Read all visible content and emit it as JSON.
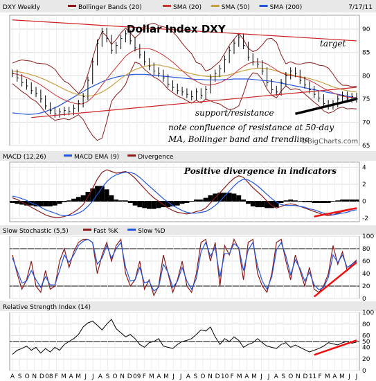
{
  "chart_data": {
    "type": "line",
    "header": {
      "symbol": "DXY Weekly",
      "date": "7/17/11",
      "legend": [
        {
          "name": "Bollinger Bands (20)",
          "color": "#8b1a1a"
        },
        {
          "name": "SMA (20)",
          "color": "#cc3333"
        },
        {
          "name": "SMA (50)",
          "color": "#c8a040"
        },
        {
          "name": "SMA (200)",
          "color": "#2255dd"
        }
      ]
    },
    "title": "Dollar Index  DXY",
    "watermark": "©BigCharts.com",
    "annotations": {
      "target": "target",
      "support": "support/resistance",
      "note1": "note confluence of resistance at 50-day",
      "note2": "MA, Bollinger band and trendline",
      "divergence": "Positive divergence in indicators"
    },
    "x_labels": [
      "A",
      "S",
      "O",
      "N",
      "D",
      "08",
      "F",
      "M",
      "A",
      "M",
      "J",
      "J",
      "A",
      "S",
      "O",
      "N",
      "D",
      "09",
      "F",
      "M",
      "A",
      "M",
      "J",
      "J",
      "A",
      "S",
      "O",
      "N",
      "D",
      "10",
      "F",
      "M",
      "A",
      "M",
      "J",
      "J",
      "A",
      "S",
      "O",
      "N",
      "D",
      "11",
      "F",
      "M",
      "A",
      "M",
      "J",
      "J"
    ],
    "price": {
      "ylim": [
        65,
        93
      ],
      "ticks": [
        65,
        70,
        75,
        80,
        85,
        90
      ],
      "close": [
        80.5,
        79.5,
        78.5,
        77.8,
        76.8,
        76.2,
        75.0,
        73.5,
        72.5,
        71.8,
        72.2,
        72.5,
        72.3,
        73.0,
        74.0,
        75.5,
        79.0,
        83.0,
        87.0,
        89.5,
        88.0,
        85.5,
        86.5,
        88.0,
        89.0,
        87.5,
        86.0,
        84.5,
        83.0,
        82.0,
        81.0,
        80.5,
        79.5,
        78.2,
        77.5,
        76.8,
        76.5,
        76.0,
        75.5,
        76.5,
        75.8,
        77.0,
        79.5,
        80.5,
        81.5,
        83.5,
        85.5,
        87.0,
        88.3,
        86.5,
        84.0,
        83.0,
        82.5,
        81.0,
        78.5,
        77.0,
        76.5,
        78.5,
        80.0,
        81.0,
        80.5,
        79.0,
        78.0,
        77.0,
        76.0,
        75.2,
        74.0,
        73.5,
        74.0,
        75.0,
        75.8,
        75.0,
        75.5,
        75.0
      ],
      "sma20": [
        80.5,
        80.3,
        80.0,
        79.6,
        79.1,
        78.6,
        78.0,
        77.3,
        76.6,
        75.9,
        75.3,
        74.8,
        74.4,
        74.1,
        73.9,
        74.0,
        74.5,
        75.4,
        76.6,
        78.0,
        79.3,
        80.6,
        81.8,
        83.0,
        84.2,
        85.0,
        85.5,
        85.8,
        85.9,
        85.8,
        85.5,
        85.0,
        84.4,
        83.7,
        82.9,
        82.0,
        81.1,
        80.2,
        79.4,
        78.8,
        78.3,
        78.0,
        78.0,
        78.2,
        78.5,
        79.0,
        79.6,
        80.4,
        81.3,
        82.0,
        82.6,
        82.9,
        83.0,
        82.9,
        82.5,
        81.9,
        81.2,
        80.6,
        80.2,
        80.0,
        79.9,
        79.7,
        79.4,
        79.0,
        78.5,
        77.9,
        77.3,
        76.8,
        76.3,
        75.9,
        75.6,
        75.4,
        75.3,
        75.3
      ],
      "sma50": [
        81.0,
        80.9,
        80.7,
        80.5,
        80.2,
        79.9,
        79.5,
        79.1,
        78.6,
        78.1,
        77.6,
        77.1,
        76.6,
        76.2,
        75.9,
        75.7,
        75.6,
        75.7,
        76.0,
        76.5,
        77.1,
        77.8,
        78.6,
        79.4,
        80.1,
        80.8,
        81.3,
        81.7,
        82.0,
        82.2,
        82.3,
        82.3,
        82.1,
        81.9,
        81.6,
        81.3,
        81.0,
        80.7,
        80.4,
        80.2,
        80.0,
        79.9,
        79.8,
        79.8,
        79.9,
        80.0,
        80.2,
        80.5,
        80.8,
        81.1,
        81.3,
        81.5,
        81.6,
        81.6,
        81.5,
        81.3,
        81.0,
        80.7,
        80.4,
        80.2,
        80.0,
        79.8,
        79.6,
        79.4,
        79.1,
        78.8,
        78.4,
        78.0,
        77.6,
        77.3,
        77.0,
        76.8,
        76.6,
        76.5
      ],
      "sma200": [
        72.0,
        71.9,
        71.8,
        71.7,
        71.7,
        71.8,
        72.0,
        72.3,
        72.7,
        73.1,
        73.6,
        74.2,
        74.8,
        75.4,
        76.0,
        76.6,
        77.2,
        77.7,
        78.2,
        78.7,
        79.1,
        79.4,
        79.7,
        79.9,
        80.1,
        80.2,
        80.3,
        80.3,
        80.3,
        80.2,
        80.1,
        80.0,
        79.9,
        79.8,
        79.7,
        79.6,
        79.5,
        79.4,
        79.3,
        79.2,
        79.2,
        79.1,
        79.1,
        79.1,
        79.1,
        79.2,
        79.2,
        79.3,
        79.3,
        79.3,
        79.3,
        79.2,
        79.1,
        79.0,
        78.9,
        78.8,
        78.6,
        78.4,
        78.2,
        78.0,
        77.8,
        77.6,
        77.4,
        77.2,
        77.0,
        76.8,
        76.6,
        76.4,
        76.2,
        76.0,
        75.8,
        75.6,
        75.4,
        75.2
      ],
      "target_line": [
        [
          0,
          92.0
        ],
        [
          73,
          87.5
        ]
      ],
      "support_line": [
        [
          4,
          71.0
        ],
        [
          73,
          77.5
        ]
      ],
      "black_trend": [
        [
          60,
          71.8
        ],
        [
          73,
          75.0
        ]
      ]
    },
    "macd": {
      "label": "MACD (12,26)",
      "legend": [
        {
          "name": "MACD EMA (9)",
          "color": "#2255dd"
        },
        {
          "name": "Divergence",
          "color": "#8b1a1a"
        }
      ],
      "ylim": [
        -2.4,
        4.6
      ],
      "ticks": [
        -2,
        0,
        2,
        4
      ],
      "macd": [
        0.4,
        0.2,
        -0.1,
        -0.4,
        -0.7,
        -1.0,
        -1.3,
        -1.6,
        -1.8,
        -1.9,
        -1.9,
        -1.8,
        -1.6,
        -1.3,
        -0.9,
        -0.4,
        0.5,
        1.5,
        2.6,
        3.4,
        3.7,
        3.5,
        3.3,
        3.4,
        3.5,
        3.2,
        2.7,
        2.1,
        1.5,
        0.9,
        0.4,
        0.0,
        -0.4,
        -0.8,
        -1.1,
        -1.3,
        -1.4,
        -1.5,
        -1.4,
        -1.2,
        -1.1,
        -0.8,
        -0.2,
        0.4,
        1.0,
        1.6,
        2.2,
        2.7,
        3.0,
        2.8,
        2.2,
        1.6,
        1.1,
        0.6,
        0.0,
        -0.5,
        -0.8,
        -0.6,
        -0.4,
        -0.3,
        -0.4,
        -0.6,
        -0.8,
        -1.0,
        -1.2,
        -1.4,
        -1.6,
        -1.7,
        -1.6,
        -1.4,
        -1.2,
        -1.1,
        -0.9,
        -0.8
      ],
      "signal": [
        0.6,
        0.5,
        0.3,
        0.1,
        -0.2,
        -0.4,
        -0.7,
        -1.0,
        -1.2,
        -1.4,
        -1.6,
        -1.7,
        -1.7,
        -1.6,
        -1.4,
        -1.1,
        -0.6,
        0.0,
        0.8,
        1.6,
        2.3,
        2.8,
        3.1,
        3.3,
        3.4,
        3.4,
        3.2,
        2.8,
        2.3,
        1.8,
        1.3,
        0.8,
        0.3,
        -0.1,
        -0.5,
        -0.8,
        -1.1,
        -1.3,
        -1.4,
        -1.4,
        -1.3,
        -1.2,
        -0.9,
        -0.5,
        0.0,
        0.6,
        1.2,
        1.8,
        2.3,
        2.6,
        2.5,
        2.2,
        1.8,
        1.3,
        0.8,
        0.3,
        -0.1,
        -0.4,
        -0.5,
        -0.5,
        -0.5,
        -0.6,
        -0.7,
        -0.9,
        -1.0,
        -1.2,
        -1.4,
        -1.5,
        -1.6,
        -1.5,
        -1.4,
        -1.3,
        -1.1,
        -1.0
      ],
      "divergence_trend": [
        [
          64,
          -1.8
        ],
        [
          73,
          -0.8
        ]
      ]
    },
    "stoch": {
      "label": "Slow Stochastic (5,5)",
      "legend": [
        {
          "name": "Fast %K",
          "color": "#8b1a1a"
        },
        {
          "name": "Slow %D",
          "color": "#2255dd"
        }
      ],
      "ylim": [
        0,
        100
      ],
      "ticks": [
        0,
        20,
        40,
        60,
        80,
        100
      ],
      "k": [
        70,
        40,
        15,
        30,
        60,
        20,
        10,
        45,
        15,
        20,
        60,
        80,
        50,
        75,
        90,
        95,
        95,
        90,
        40,
        70,
        90,
        60,
        85,
        95,
        40,
        20,
        30,
        60,
        15,
        30,
        5,
        20,
        70,
        40,
        10,
        30,
        60,
        20,
        10,
        40,
        90,
        95,
        60,
        90,
        20,
        85,
        70,
        95,
        80,
        30,
        90,
        95,
        40,
        20,
        10,
        40,
        90,
        95,
        60,
        30,
        70,
        45,
        20,
        50,
        15,
        10,
        20,
        40,
        85,
        55,
        75,
        45,
        55,
        62
      ],
      "d": [
        65,
        45,
        25,
        28,
        45,
        30,
        18,
        35,
        22,
        22,
        45,
        70,
        58,
        70,
        85,
        92,
        95,
        90,
        55,
        65,
        85,
        65,
        80,
        90,
        50,
        28,
        30,
        50,
        25,
        28,
        12,
        18,
        55,
        42,
        18,
        28,
        50,
        28,
        15,
        32,
        75,
        90,
        68,
        82,
        35,
        72,
        72,
        88,
        82,
        45,
        78,
        90,
        52,
        28,
        15,
        35,
        78,
        90,
        68,
        38,
        62,
        48,
        28,
        42,
        22,
        14,
        18,
        34,
        70,
        58,
        70,
        50,
        55,
        60
      ],
      "trend": [
        [
          64,
          3
        ],
        [
          73,
          58
        ]
      ]
    },
    "rsi": {
      "label": "Relative Strength Index (14)",
      "ylim": [
        0,
        100
      ],
      "ticks": [
        0,
        20,
        40,
        50,
        60,
        80,
        100
      ],
      "values": [
        28,
        35,
        38,
        42,
        35,
        40,
        30,
        38,
        32,
        40,
        35,
        45,
        50,
        55,
        62,
        75,
        82,
        85,
        78,
        70,
        80,
        88,
        72,
        65,
        58,
        62,
        55,
        45,
        40,
        48,
        50,
        55,
        42,
        40,
        38,
        45,
        50,
        52,
        55,
        62,
        70,
        68,
        75,
        58,
        45,
        55,
        50,
        58,
        52,
        40,
        45,
        48,
        55,
        48,
        42,
        40,
        38,
        45,
        48,
        40,
        44,
        40,
        36,
        32,
        35,
        38,
        42,
        48,
        46,
        44,
        48,
        50,
        47,
        49
      ],
      "trend": [
        [
          64,
          27
        ],
        [
          73,
          52
        ]
      ]
    }
  }
}
